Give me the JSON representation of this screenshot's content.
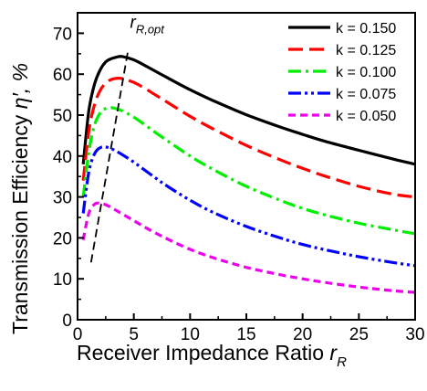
{
  "chart_data": {
    "type": "line",
    "xlabel": "Receiver Impedance Ratio",
    "xlabel_symbol": "r",
    "xlabel_subscript": "R",
    "ylabel": "Transmission Efficiency",
    "ylabel_symbol": "η′, %",
    "xlim": [
      0,
      30
    ],
    "ylim": [
      0,
      75
    ],
    "x_ticks": [
      0,
      5,
      10,
      15,
      20,
      25,
      30
    ],
    "y_ticks": [
      0,
      10,
      20,
      30,
      40,
      50,
      60,
      70
    ],
    "grid": false,
    "legend_position": "top-right",
    "x": [
      0.5,
      1,
      1.5,
      2,
      2.5,
      3,
      3.5,
      4,
      5,
      6,
      7,
      8,
      10,
      12,
      15,
      18,
      20,
      22,
      25,
      28,
      30
    ],
    "series": [
      {
        "name": "k = 0.150",
        "color": "#000000",
        "dash": "solid",
        "values": [
          38,
          51,
          57.5,
          61,
          63,
          63.8,
          64.2,
          64.3,
          63.5,
          62.1,
          60.6,
          59.1,
          56.2,
          53.6,
          50.1,
          47.1,
          45.3,
          43.6,
          41.4,
          39.3,
          38
        ]
      },
      {
        "name": "k = 0.125",
        "color": "#ff0000",
        "dash": "dash",
        "values": [
          34,
          46,
          52.5,
          56,
          57.8,
          58.7,
          59,
          58.9,
          58,
          56.5,
          54.8,
          53.1,
          49.7,
          46.7,
          42.6,
          39.1,
          37,
          35.1,
          32.6,
          30.7,
          30
        ]
      },
      {
        "name": "k = 0.100",
        "color": "#00ee00",
        "dash": "dashdot",
        "values": [
          30,
          41,
          47.5,
          50.5,
          51.6,
          51.8,
          51.5,
          51,
          49.5,
          47.6,
          45.6,
          43.7,
          40,
          36.8,
          32.6,
          29.2,
          27.2,
          25.6,
          23.6,
          22,
          21
        ]
      },
      {
        "name": "k = 0.075",
        "color": "#0000ff",
        "dash": "dashdotdot",
        "values": [
          26,
          36,
          40.5,
          42,
          42.2,
          41.8,
          41.1,
          40.3,
          38.5,
          36.5,
          34.5,
          32.6,
          29.2,
          26.3,
          22.8,
          20,
          18.4,
          17.1,
          15.4,
          14,
          13.2
        ]
      },
      {
        "name": "k = 0.050",
        "color": "#ee00ee",
        "dash": "shortdash",
        "values": [
          19.5,
          26,
          28.2,
          28.5,
          28.1,
          27.4,
          26.6,
          25.8,
          24.2,
          22.6,
          21.1,
          19.7,
          17.2,
          15.2,
          12.8,
          11,
          10,
          9.1,
          8,
          7.1,
          6.7
        ]
      }
    ],
    "annotation": {
      "label": "r",
      "label_subscript": "R,opt",
      "line_x": [
        1.2,
        4.5
      ],
      "line_y": [
        14,
        66
      ]
    }
  }
}
